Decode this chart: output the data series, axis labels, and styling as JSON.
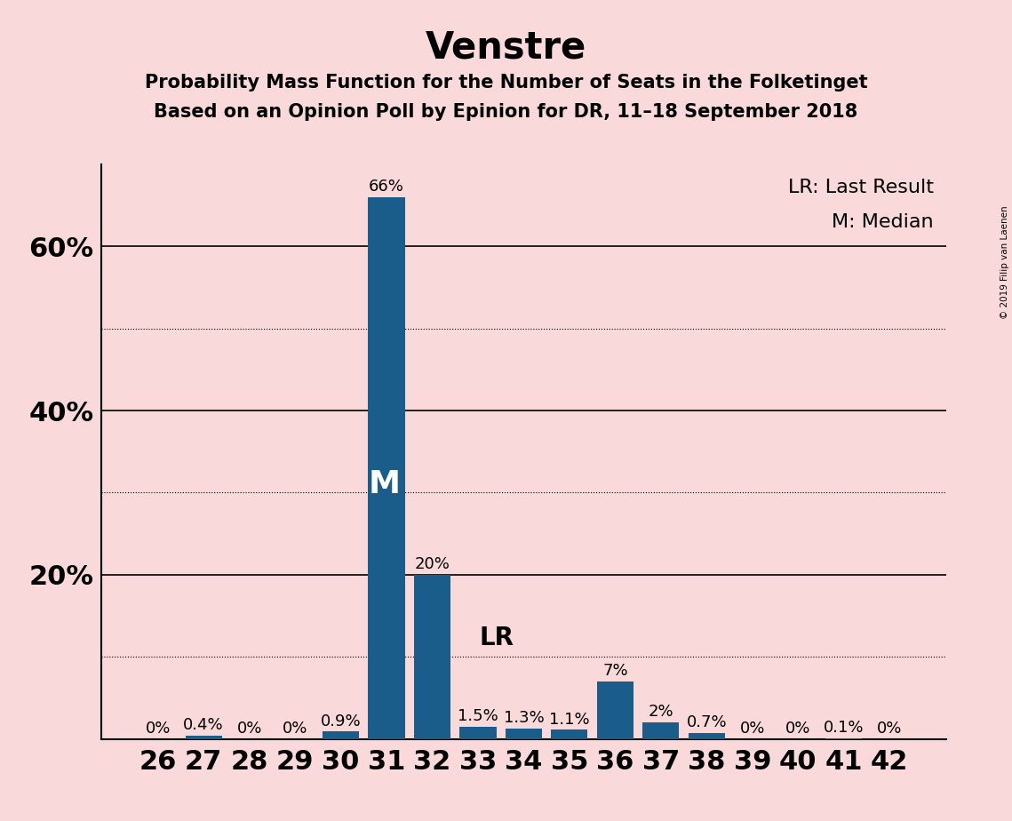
{
  "title": "Venstre",
  "subtitle1": "Probability Mass Function for the Number of Seats in the Folketinget",
  "subtitle2": "Based on an Opinion Poll by Epinion for DR, 11–18 September 2018",
  "categories": [
    26,
    27,
    28,
    29,
    30,
    31,
    32,
    33,
    34,
    35,
    36,
    37,
    38,
    39,
    40,
    41,
    42
  ],
  "values": [
    0.0,
    0.4,
    0.0,
    0.0,
    0.9,
    66.0,
    20.0,
    1.5,
    1.3,
    1.1,
    7.0,
    2.0,
    0.7,
    0.0,
    0.0,
    0.1,
    0.0
  ],
  "labels": [
    "0%",
    "0.4%",
    "0%",
    "0%",
    "0.9%",
    "66%",
    "20%",
    "1.5%",
    "1.3%",
    "1.1%",
    "7%",
    "2%",
    "0.7%",
    "0%",
    "0%",
    "0.1%",
    "0%"
  ],
  "bar_color": "#1a5c8a",
  "background_color": "#f9d9d9",
  "median_seat": 31,
  "lr_seat": 34,
  "ylim": [
    0,
    70
  ],
  "major_yticks": [
    20,
    40,
    60
  ],
  "minor_yticks": [
    10,
    30,
    50
  ],
  "legend_text1": "LR: Last Result",
  "legend_text2": "M: Median",
  "copyright": "© 2019 Filip van Laenen",
  "title_fontsize": 30,
  "subtitle_fontsize": 15,
  "axis_tick_fontsize": 22,
  "bar_label_fontsize": 13,
  "median_label_fontsize": 26,
  "lr_label_fontsize": 20,
  "legend_fontsize": 16
}
